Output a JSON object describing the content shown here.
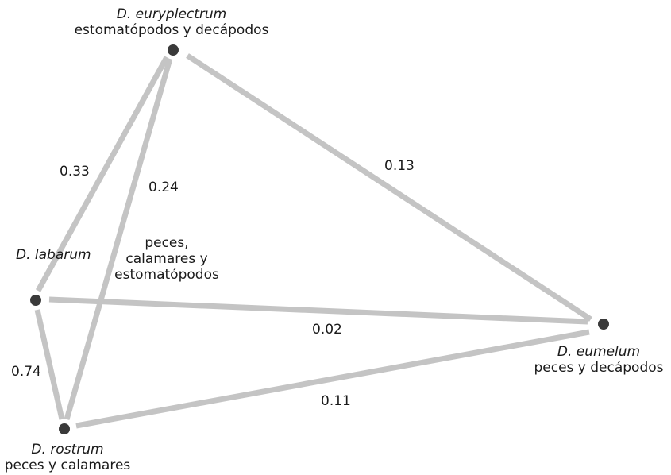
{
  "colors": {
    "edge": "#c4c4c4",
    "node": "#3a3a3a",
    "text": "#1a1a1a"
  },
  "nodes": {
    "euryplectrum": {
      "species": "D. euryplectrum",
      "diet": "estomatópodos y decápodos"
    },
    "labarum": {
      "species": "D. labarum",
      "diet": "peces, calamares y estomatópodos",
      "diet_lines": [
        "peces,",
        "calamares y",
        "estomatópodos"
      ]
    },
    "eumelum": {
      "species": "D. eumelum",
      "diet": "peces y decápodos"
    },
    "rostrum": {
      "species": "D. rostrum",
      "diet": "peces y calamares"
    }
  },
  "edges": {
    "euryplectrum_labarum": "0.33",
    "euryplectrum_rostrum": "0.24",
    "euryplectrum_eumelum": "0.13",
    "labarum_eumelum": "0.02",
    "labarum_rostrum": "0.74",
    "rostrum_eumelum": "0.11"
  }
}
